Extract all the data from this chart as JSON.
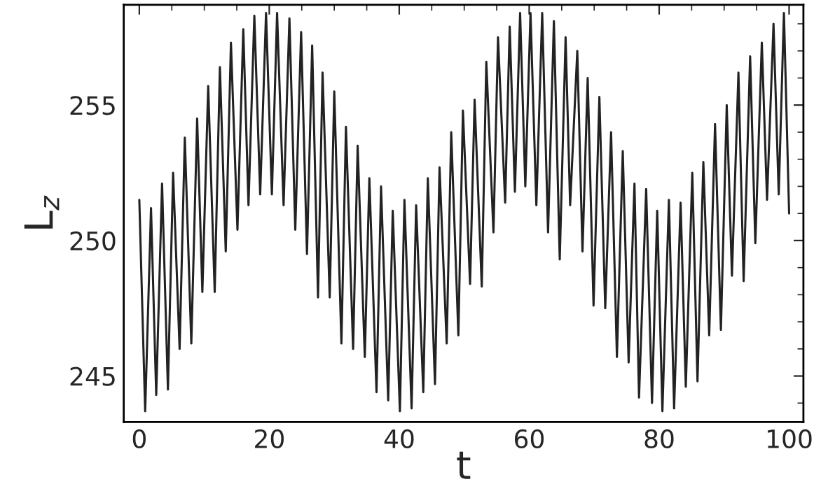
{
  "chart_data": {
    "type": "line",
    "xlabel": "t",
    "ylabel": "L$_{z}$",
    "xlim": [
      -2.4,
      102.2
    ],
    "ylim": [
      243.3,
      258.7
    ],
    "xticks": [
      0,
      20,
      40,
      60,
      80,
      100
    ],
    "yticks": [
      245,
      250,
      255
    ],
    "grid": false,
    "legend": false,
    "marker": "none",
    "line_style": "solid",
    "series": [
      {
        "color": "#222222",
        "x": [
          0.0,
          0.9,
          1.8,
          2.6,
          3.5,
          4.4,
          5.2,
          6.2,
          7.0,
          8.0,
          8.9,
          9.7,
          10.6,
          11.6,
          12.4,
          13.3,
          14.1,
          15.1,
          16.0,
          16.8,
          17.7,
          18.6,
          19.5,
          20.4,
          21.2,
          22.2,
          23.1,
          24.0,
          24.9,
          25.8,
          26.6,
          27.5,
          28.2,
          29.3,
          30.0,
          31.1,
          31.8,
          32.9,
          33.6,
          34.7,
          35.4,
          36.5,
          37.2,
          38.3,
          39.0,
          40.1,
          40.8,
          41.9,
          42.6,
          43.7,
          44.4,
          45.5,
          46.2,
          47.3,
          48.0,
          49.1,
          49.8,
          50.9,
          51.6,
          52.7,
          53.4,
          54.5,
          55.2,
          56.3,
          57.0,
          57.8,
          58.6,
          59.4,
          60.2,
          61.1,
          62.0,
          62.9,
          63.8,
          64.7,
          65.6,
          66.3,
          67.4,
          68.2,
          69.0,
          69.9,
          70.8,
          71.7,
          72.6,
          73.5,
          74.4,
          75.3,
          76.2,
          76.9,
          78.0,
          78.9,
          79.7,
          80.5,
          81.5,
          82.3,
          83.3,
          84.1,
          85.1,
          85.9,
          86.8,
          87.7,
          88.6,
          89.5,
          90.4,
          91.2,
          92.2,
          93.0,
          94.0,
          94.8,
          95.8,
          96.6,
          97.6,
          98.4,
          99.2,
          100.0
        ],
        "values": [
          251.5,
          243.7,
          251.2,
          244.3,
          252.1,
          244.5,
          252.5,
          246.0,
          253.8,
          246.2,
          254.5,
          248.1,
          255.7,
          248.1,
          256.4,
          249.6,
          257.3,
          250.4,
          257.8,
          251.3,
          258.3,
          251.7,
          258.4,
          251.7,
          258.4,
          251.3,
          258.2,
          250.4,
          257.7,
          249.5,
          257.2,
          247.9,
          256.2,
          247.9,
          255.5,
          246.2,
          254.2,
          246.0,
          253.5,
          245.7,
          252.3,
          244.4,
          252.0,
          244.1,
          251.1,
          243.7,
          251.5,
          243.8,
          251.3,
          244.4,
          252.3,
          244.7,
          252.7,
          246.2,
          254.0,
          246.5,
          254.8,
          248.4,
          255.2,
          248.3,
          256.6,
          250.3,
          257.5,
          251.4,
          257.9,
          251.8,
          258.4,
          252.0,
          258.4,
          251.3,
          258.4,
          250.3,
          258.1,
          249.3,
          257.5,
          251.3,
          257.0,
          249.6,
          256.0,
          247.6,
          255.3,
          247.5,
          254.0,
          245.7,
          253.3,
          245.5,
          252.1,
          244.2,
          251.9,
          244.0,
          251.1,
          243.7,
          251.5,
          243.8,
          251.4,
          244.6,
          252.5,
          244.8,
          252.9,
          246.5,
          254.3,
          246.7,
          255.0,
          248.7,
          256.2,
          248.5,
          256.8,
          249.9,
          257.3,
          251.5,
          258.0,
          251.7,
          258.4,
          251.0
        ]
      }
    ]
  }
}
